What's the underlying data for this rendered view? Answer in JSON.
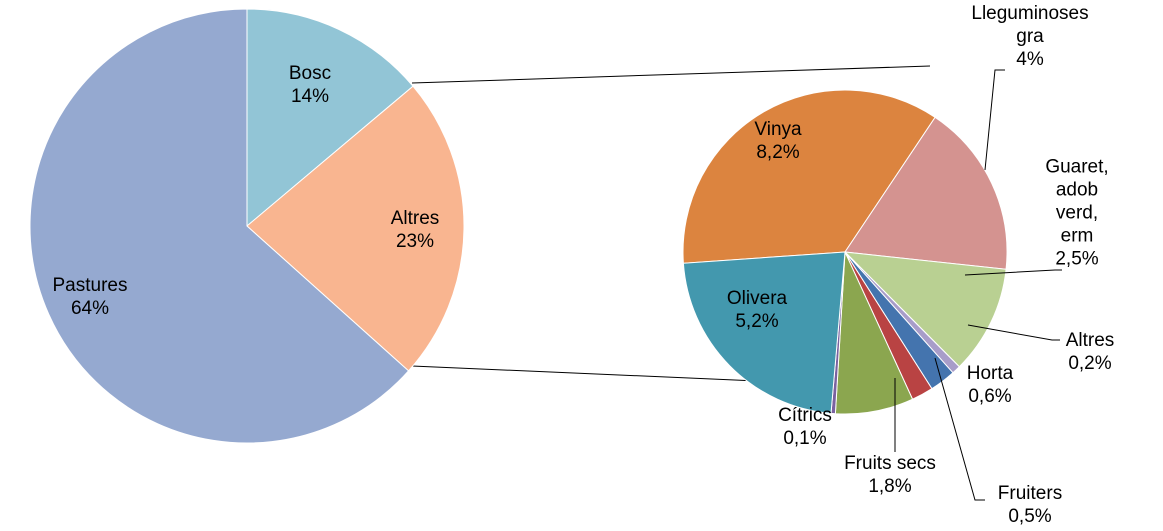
{
  "chart_data": [
    {
      "type": "pie",
      "categories": [
        "Bosc",
        "Altres",
        "Pastures"
      ],
      "values": [
        14,
        23,
        64
      ],
      "value_labels": [
        "14%",
        "23%",
        "64%"
      ],
      "colors": [
        "#92c5d6",
        "#f9b590",
        "#95a9d0"
      ]
    },
    {
      "type": "pie",
      "categories": [
        "Vinya",
        "Cereals/\nLleguminoses gra",
        "Guaret,\nadob verd,\nerm",
        "Altres",
        "Horta",
        "Fruiters",
        "Fruits secs",
        "Cítrics",
        "Olivera"
      ],
      "values": [
        8.2,
        4,
        2.5,
        0.2,
        0.6,
        0.5,
        1.8,
        0.1,
        5.2
      ],
      "value_labels": [
        "8,2%",
        "4%",
        "2,5%",
        "0,2%",
        "0,6%",
        "0,5%",
        "1,8%",
        "0,1%",
        "5,2%"
      ],
      "colors": [
        "#dc843f",
        "#d49390",
        "#b9d092",
        "#a89dc9",
        "#4474ae",
        "#b94343",
        "#8ba64f",
        "#7a62a0",
        "#4398ae"
      ]
    }
  ]
}
